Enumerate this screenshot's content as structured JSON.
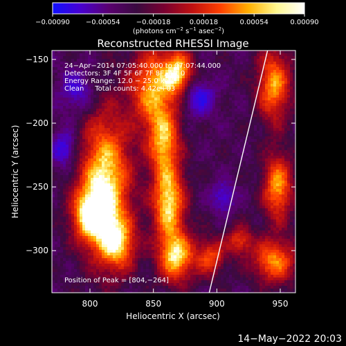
{
  "chart_data": {
    "type": "heatmap",
    "title": "Reconstructed RHESSI Image",
    "xlabel": "Heliocentric X (arcsec)",
    "ylabel": "Heliocentric Y (arcsec)",
    "xlim": [
      770,
      962
    ],
    "ylim": [
      -333,
      -143
    ],
    "x_ticks": [
      800,
      850,
      900,
      950
    ],
    "y_ticks": [
      -150,
      -200,
      -250,
      -300
    ],
    "x_tick_labels": [
      "800",
      "850",
      "900",
      "950"
    ],
    "y_tick_labels": [
      "−150",
      "−200",
      "−250",
      "−300"
    ],
    "colorbar": {
      "ticks": [
        -0.0009,
        -0.00054,
        -0.00018,
        0.00018,
        0.00054,
        0.0009
      ],
      "tick_labels": [
        "−0.00090",
        "−0.00054",
        "−0.00018",
        "0.00018",
        "0.00054",
        "0.00090"
      ],
      "unit_prefix": "(photons cm",
      "unit_exp1": "−2",
      "unit_mid": " s",
      "unit_exp2": "−1",
      "unit_mid2": " asec",
      "unit_exp3": "−2",
      "unit_suffix": ")",
      "colors": [
        "#1010ff",
        "#4800d0",
        "#5a0070",
        "#3a0a40",
        "#7a0030",
        "#c01010",
        "#ff4000",
        "#ffb000",
        "#fff890",
        "#ffffff"
      ]
    },
    "annotations": [
      "24−Apr−2014 07:05:40.000 to 07:07:44.000",
      "Detectors: 3F 4F 5F 6F 7F 8F, Att 0",
      "Energy Range: 12.0 − 25.0 keV",
      "Clean     Total counts: 4.42e+03"
    ],
    "peak_label": "Position of Peak = [804,−264]",
    "peak": [
      804,
      -264
    ],
    "limb_line": [
      [
        894,
        -333
      ],
      [
        940,
        -143
      ]
    ],
    "blobs": [
      {
        "x": 812,
        "y": -248,
        "sx": 14,
        "sy": 38,
        "a": 1.0
      },
      {
        "x": 800,
        "y": -272,
        "sx": 10,
        "sy": 14,
        "a": 0.8
      },
      {
        "x": 822,
        "y": -295,
        "sx": 10,
        "sy": 14,
        "a": 0.7
      },
      {
        "x": 850,
        "y": -172,
        "sx": 13,
        "sy": 22,
        "a": 0.8
      },
      {
        "x": 870,
        "y": -160,
        "sx": 8,
        "sy": 12,
        "a": 0.8
      },
      {
        "x": 858,
        "y": -215,
        "sx": 9,
        "sy": 18,
        "a": 0.75
      },
      {
        "x": 862,
        "y": -262,
        "sx": 9,
        "sy": 20,
        "a": 0.95
      },
      {
        "x": 868,
        "y": -305,
        "sx": 10,
        "sy": 14,
        "a": 0.9
      },
      {
        "x": 895,
        "y": -305,
        "sx": 8,
        "sy": 10,
        "a": 0.6
      },
      {
        "x": 945,
        "y": -170,
        "sx": 9,
        "sy": 20,
        "a": 0.8
      },
      {
        "x": 948,
        "y": -250,
        "sx": 8,
        "sy": 18,
        "a": 0.8
      },
      {
        "x": 945,
        "y": -308,
        "sx": 12,
        "sy": 12,
        "a": 0.75
      },
      {
        "x": 918,
        "y": -292,
        "sx": 7,
        "sy": 8,
        "a": 0.55
      },
      {
        "x": 905,
        "y": -258,
        "sx": 6,
        "sy": 8,
        "a": -0.4
      },
      {
        "x": 885,
        "y": -180,
        "sx": 9,
        "sy": 10,
        "a": -0.45
      },
      {
        "x": 790,
        "y": -175,
        "sx": 10,
        "sy": 12,
        "a": -0.35
      },
      {
        "x": 780,
        "y": -220,
        "sx": 7,
        "sy": 10,
        "a": -0.45
      }
    ]
  },
  "footer": {
    "date": "14−May−2022 20:03"
  }
}
